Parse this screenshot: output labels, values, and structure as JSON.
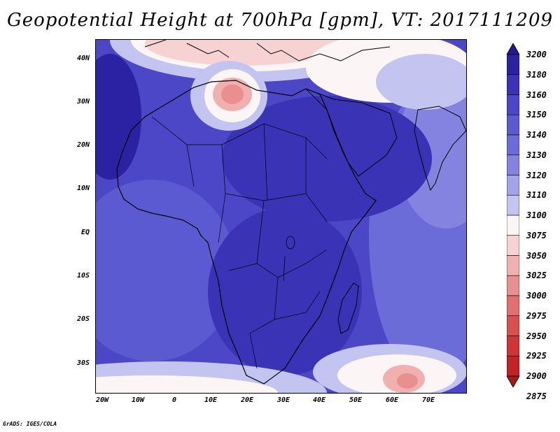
{
  "title": "Geopotential Height at 700hPa [gpm], VT: 2017111209",
  "credit": "GrADS: IGES/COLA",
  "map": {
    "lat_labels": [
      "40N",
      "30N",
      "20N",
      "10N",
      "EQ",
      "10S",
      "20S",
      "30S"
    ],
    "lon_labels": [
      "20W",
      "10W",
      "0",
      "10E",
      "20E",
      "30E",
      "40E",
      "50E",
      "60E",
      "70E"
    ],
    "extent": {
      "lon_min": -22,
      "lon_max": 80,
      "lat_min": -37,
      "lat_max": 45
    }
  },
  "colorbar": {
    "levels": [
      "3200",
      "3180",
      "3160",
      "3150",
      "3140",
      "3130",
      "3120",
      "3110",
      "3100",
      "3075",
      "3050",
      "3025",
      "3000",
      "2975",
      "2950",
      "2925",
      "2900",
      "2875"
    ],
    "colors": [
      "#23198f",
      "#2a22a3",
      "#3a33b6",
      "#4b47c6",
      "#5c5ad1",
      "#6c6cd8",
      "#8484e0",
      "#a3a3ea",
      "#c4c4f1",
      "#fbf5f5",
      "#f7d2d2",
      "#f1b0b0",
      "#ea8f8f",
      "#e27070",
      "#d95050",
      "#cf3535",
      "#c02424",
      "#a31a1a"
    ]
  }
}
